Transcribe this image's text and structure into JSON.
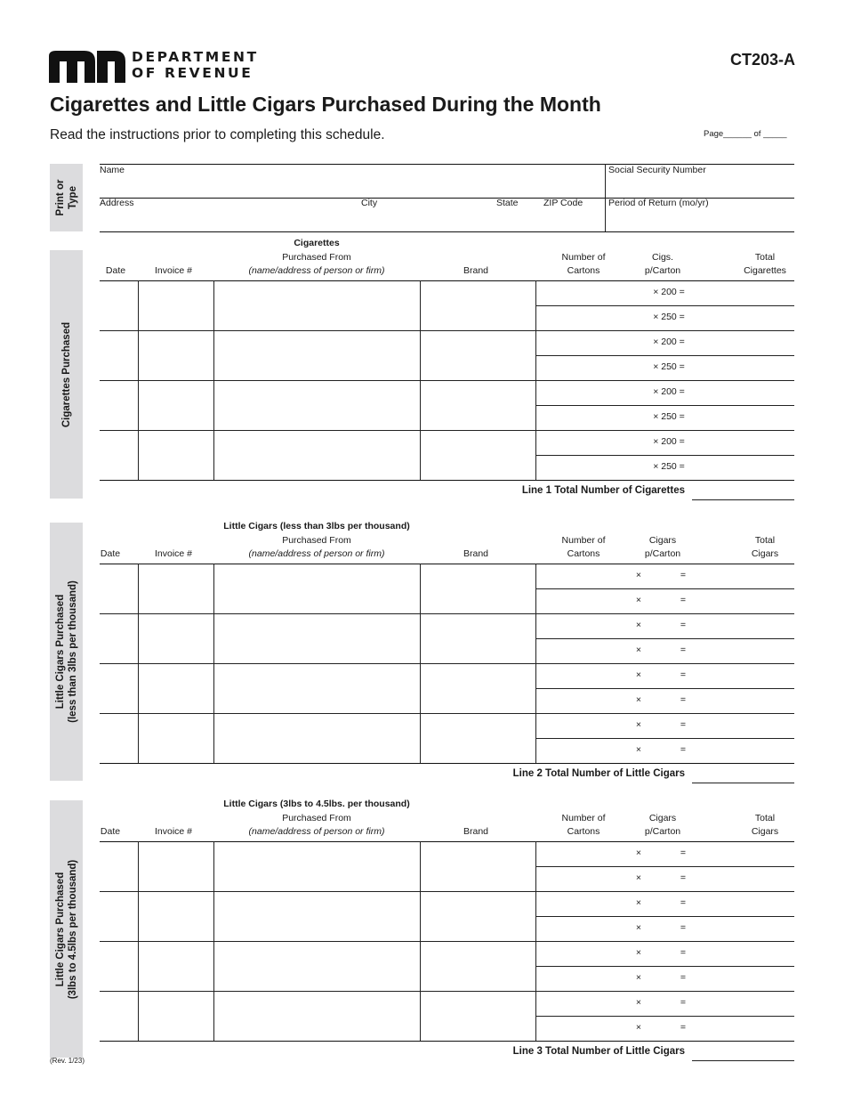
{
  "header": {
    "agency_line1": "DEPARTMENT",
    "agency_line2": "OF REVENUE",
    "form_number": "CT203-A",
    "title": "Cigarettes and Little Cigars Purchased During the Month",
    "instructions": "Read the instructions prior to completing this schedule.",
    "page_label": "Page______ of _____"
  },
  "taxpayer": {
    "side_label_line1": "Print or",
    "side_label_line2": "Type",
    "name_label": "Name",
    "ssn_label": "Social Security Number",
    "address_label": "Address",
    "city_label": "City",
    "state_label": "State",
    "zip_label": "ZIP Code",
    "period_label": "Period of Return (mo/yr)"
  },
  "sections": [
    {
      "side_label_line1": "Cigarettes Purchased",
      "side_label_line2": "",
      "title": "Cigarettes",
      "col_date": "Date",
      "col_invoice": "Invoice #",
      "col_from_1": "Purchased From",
      "col_from_2": "(name/address of person or firm)",
      "col_brand": "Brand",
      "col_cartons_1": "Number of",
      "col_cartons_2": "Cartons",
      "col_per_1": "Cigs.",
      "col_per_2": "p/Carton",
      "col_total_1": "Total",
      "col_total_2": "Cigarettes",
      "multiplier_rows": [
        "× 200 =",
        "× 250 =",
        "× 200 =",
        "× 250 =",
        "× 200 =",
        "× 250 =",
        "× 200 =",
        "× 250 ="
      ],
      "total_label": "Line 1 Total Number of Cigarettes"
    },
    {
      "side_label_line1": "Little Cigars Purchased",
      "side_label_line2": "(less than 3lbs per thousand)",
      "title": "Little Cigars (less than 3lbs per thousand)",
      "col_date": "Date",
      "col_invoice": "Invoice #",
      "col_from_1": "Purchased From",
      "col_from_2": "(name/address of person or firm)",
      "col_brand": "Brand",
      "col_cartons_1": "Number of",
      "col_cartons_2": "Cartons",
      "col_per_1": "Cigars",
      "col_per_2": "p/Carton",
      "col_total_1": "Total",
      "col_total_2": "Cigars",
      "times_symbol": "×",
      "equals_symbol": "=",
      "row_count": 8,
      "total_label": "Line 2 Total Number of Little Cigars"
    },
    {
      "side_label_line1": "Little Cigars Purchased",
      "side_label_line2": "(3lbs to 4.5lbs per thousand)",
      "title": "Little Cigars (3lbs to 4.5lbs. per thousand)",
      "col_date": "Date",
      "col_invoice": "Invoice #",
      "col_from_1": "Purchased From",
      "col_from_2": "(name/address of person or firm)",
      "col_brand": "Brand",
      "col_cartons_1": "Number of",
      "col_cartons_2": "Cartons",
      "col_per_1": "Cigars",
      "col_per_2": "p/Carton",
      "col_total_1": "Total",
      "col_total_2": "Cigars",
      "times_symbol": "×",
      "equals_symbol": "=",
      "row_count": 8,
      "total_label": "Line 3 Total Number of Little Cigars"
    }
  ],
  "footer": {
    "revision": "(Rev. 1/23)"
  }
}
